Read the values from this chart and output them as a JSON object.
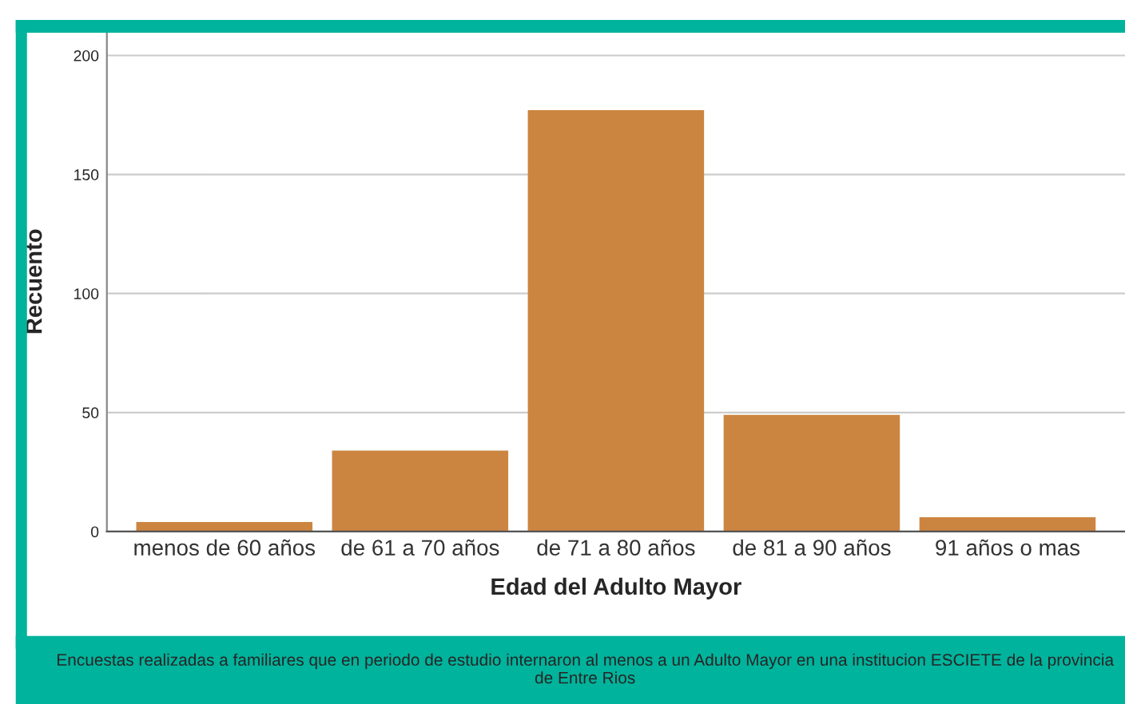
{
  "chart_data": {
    "type": "bar",
    "xlabel": "Edad del Adulto Mayor",
    "ylabel": "Recuento",
    "categories": [
      "menos de 60 años",
      "de 61 a 70 años",
      "de 71 a 80 años",
      "de 81 a 90 años",
      "91 años o mas"
    ],
    "values": [
      4,
      34,
      177,
      49,
      6
    ],
    "color": "#cc8540",
    "ylim": [
      0,
      210
    ],
    "yticks": [
      0,
      50,
      100,
      150,
      200
    ],
    "grid": "y",
    "annotations": [
      "Encuestas realizadas a familiares que en periodo de estudio internaron al menos a un Adulto Mayor en una institucion ESCIETE de la provincia de Entre Rios"
    ]
  }
}
